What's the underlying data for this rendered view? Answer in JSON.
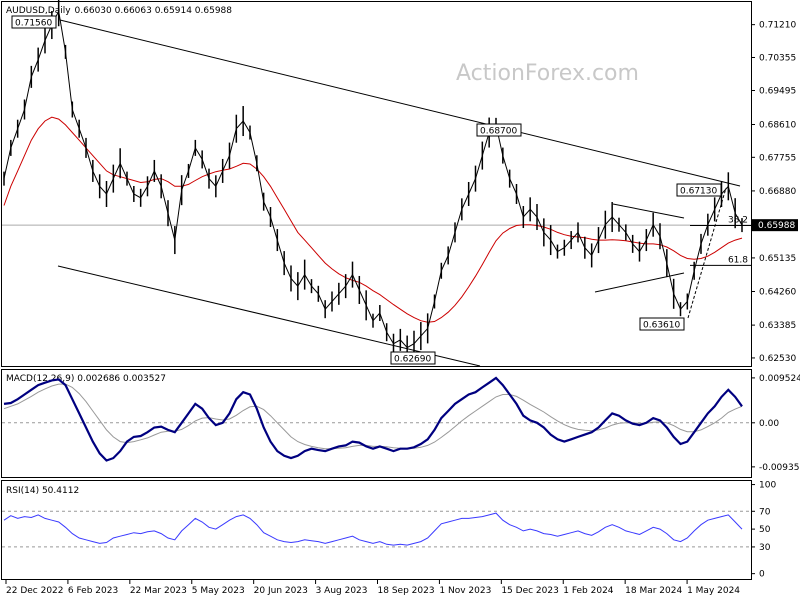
{
  "header": {
    "symbol": "AUDUSD,Daily",
    "ohlc": "0.66030 0.66063 0.65914 0.65988"
  },
  "watermark": "ActionForex.com",
  "colors": {
    "price": "#000000",
    "ma": "#cc0000",
    "macd": "#000080",
    "signal": "#999999",
    "rsi": "#3a3aff",
    "channel": "#000000"
  },
  "chart_data": [
    {
      "type": "line",
      "panel": "price",
      "title": "AUDUSD,Daily",
      "x_ticks": [
        "22 Dec 2022",
        "6 Feb 2023",
        "22 Mar 2023",
        "5 May 2023",
        "20 Jun 2023",
        "3 Aug 2023",
        "18 Sep 2023",
        "1 Nov 2023",
        "15 Dec 2023",
        "1 Feb 2024",
        "18 Mar 2024",
        "1 May 2024"
      ],
      "y_ticks": [
        "0.71210",
        "0.70355",
        "0.69495",
        "0.68610",
        "0.67755",
        "0.66880",
        "0.66025",
        "0.65135",
        "0.64260",
        "0.63385",
        "0.62530"
      ],
      "ylim": [
        0.6232,
        0.718
      ],
      "current_price": "0.65988",
      "fib_labels": [
        "38.2",
        "61.8"
      ],
      "fib_levels": [
        0.6598,
        0.6494
      ],
      "annotations": [
        {
          "label": "0.71560",
          "x": "06 Feb 2023",
          "y": 0.7156
        },
        {
          "label": "0.62690",
          "x": "26 Oct 2023",
          "y": 0.6269
        },
        {
          "label": "0.68700",
          "x": "15 Dec 2023",
          "y": 0.687
        },
        {
          "label": "0.67130",
          "x": "08 May 2024",
          "y": 0.6713
        },
        {
          "label": "0.63610",
          "x": "19 Apr 2024",
          "y": 0.6361
        }
      ],
      "series": [
        {
          "values": [
            0.672,
            0.68,
            0.685,
            0.69,
            0.6985,
            0.703,
            0.708,
            0.712,
            0.7156,
            0.705,
            0.69,
            0.685,
            0.68,
            0.674,
            0.67,
            0.668,
            0.672,
            0.676,
            0.672,
            0.668,
            0.667,
            0.67,
            0.674,
            0.67,
            0.663,
            0.656,
            0.669,
            0.674,
            0.68,
            0.677,
            0.672,
            0.67,
            0.674,
            0.678,
            0.685,
            0.687,
            0.684,
            0.676,
            0.666,
            0.662,
            0.656,
            0.65,
            0.646,
            0.644,
            0.647,
            0.644,
            0.642,
            0.638,
            0.64,
            0.642,
            0.644,
            0.647,
            0.643,
            0.639,
            0.635,
            0.637,
            0.632,
            0.629,
            0.63,
            0.628,
            0.629,
            0.631,
            0.633,
            0.64,
            0.648,
            0.652,
            0.658,
            0.664,
            0.668,
            0.672,
            0.678,
            0.684,
            0.686,
            0.678,
            0.672,
            0.668,
            0.662,
            0.664,
            0.662,
            0.658,
            0.656,
            0.653,
            0.654,
            0.656,
            0.658,
            0.654,
            0.652,
            0.656,
            0.66,
            0.662,
            0.66,
            0.658,
            0.655,
            0.653,
            0.656,
            0.66,
            0.657,
            0.65,
            0.642,
            0.638,
            0.64,
            0.648,
            0.655,
            0.66,
            0.664,
            0.668,
            0.67,
            0.663,
            0.6599
          ]
        },
        {
          "values": [
            0.665,
            0.67,
            0.674,
            0.678,
            0.682,
            0.685,
            0.687,
            0.688,
            0.6875,
            0.686,
            0.684,
            0.682,
            0.68,
            0.678,
            0.676,
            0.674,
            0.673,
            0.6725,
            0.672,
            0.6715,
            0.671,
            0.6712,
            0.6718,
            0.672,
            0.6712,
            0.67,
            0.67,
            0.6705,
            0.6715,
            0.6725,
            0.6732,
            0.6738,
            0.6742,
            0.6745,
            0.6752,
            0.676,
            0.6758,
            0.6745,
            0.6725,
            0.67,
            0.667,
            0.664,
            0.661,
            0.658,
            0.656,
            0.654,
            0.652,
            0.65,
            0.6485,
            0.6472,
            0.6462,
            0.6455,
            0.645,
            0.644,
            0.6428,
            0.6418,
            0.6405,
            0.6392,
            0.638,
            0.6368,
            0.6358,
            0.635,
            0.6346,
            0.6348,
            0.6358,
            0.6372,
            0.639,
            0.6412,
            0.6438,
            0.6466,
            0.6496,
            0.6528,
            0.6558,
            0.6578,
            0.659,
            0.6598,
            0.66,
            0.66,
            0.6598,
            0.6594,
            0.6588,
            0.658,
            0.6574,
            0.657,
            0.6568,
            0.6566,
            0.6562,
            0.656,
            0.656,
            0.6561,
            0.656,
            0.6558,
            0.6555,
            0.6552,
            0.655,
            0.655,
            0.6548,
            0.6542,
            0.6532,
            0.652,
            0.6512,
            0.651,
            0.6512,
            0.6518,
            0.6528,
            0.654,
            0.6552,
            0.656,
            0.6565
          ]
        }
      ]
    },
    {
      "type": "line",
      "panel": "macd",
      "title": "MACD(12,26,9) 0.002686 0.003527",
      "y_ticks": [
        "0.009524",
        "0.00",
        "-0.00935"
      ],
      "ylim": [
        -0.0115,
        0.0112
      ],
      "series": [
        {
          "values": [
            0.004,
            0.0042,
            0.005,
            0.006,
            0.007,
            0.008,
            0.0085,
            0.009,
            0.0092,
            0.008,
            0.005,
            0.002,
            -0.001,
            -0.004,
            -0.0065,
            -0.008,
            -0.0075,
            -0.006,
            -0.004,
            -0.003,
            -0.0028,
            -0.002,
            -0.001,
            -0.0008,
            -0.0015,
            -0.002,
            0.0,
            0.002,
            0.004,
            0.003,
            0.001,
            -0.0005,
            0.0,
            0.002,
            0.005,
            0.0065,
            0.006,
            0.003,
            -0.001,
            -0.004,
            -0.006,
            -0.007,
            -0.0075,
            -0.007,
            -0.006,
            -0.0055,
            -0.0058,
            -0.006,
            -0.0055,
            -0.005,
            -0.0048,
            -0.004,
            -0.0042,
            -0.005,
            -0.0055,
            -0.005,
            -0.0055,
            -0.006,
            -0.0055,
            -0.0055,
            -0.0052,
            -0.0045,
            -0.0035,
            -0.0015,
            0.001,
            0.0025,
            0.004,
            0.005,
            0.006,
            0.0065,
            0.0075,
            0.0085,
            0.0095,
            0.008,
            0.006,
            0.004,
            0.0015,
            0.0005,
            0.0,
            -0.001,
            -0.0025,
            -0.0035,
            -0.004,
            -0.0035,
            -0.003,
            -0.0025,
            -0.002,
            -0.001,
            0.0005,
            0.002,
            0.0015,
            0.0005,
            -0.0002,
            -0.0005,
            0.0,
            0.001,
            0.0005,
            -0.001,
            -0.003,
            -0.0045,
            -0.004,
            -0.002,
            0.0,
            0.002,
            0.0035,
            0.0055,
            0.007,
            0.0055,
            0.0035
          ]
        },
        {
          "values": [
            0.003,
            0.0035,
            0.004,
            0.0048,
            0.0056,
            0.0065,
            0.0072,
            0.0078,
            0.0082,
            0.0082,
            0.0075,
            0.0062,
            0.0045,
            0.0025,
            0.0005,
            -0.0015,
            -0.003,
            -0.004,
            -0.0042,
            -0.004,
            -0.0036,
            -0.0032,
            -0.0026,
            -0.002,
            -0.0018,
            -0.0018,
            -0.0014,
            -0.0006,
            0.0004,
            0.001,
            0.0011,
            0.0008,
            0.0006,
            0.0008,
            0.0016,
            0.0026,
            0.0034,
            0.0035,
            0.0028,
            0.0015,
            0.0,
            -0.0015,
            -0.003,
            -0.004,
            -0.0046,
            -0.005,
            -0.0053,
            -0.0055,
            -0.0055,
            -0.0054,
            -0.0053,
            -0.005,
            -0.0048,
            -0.0048,
            -0.005,
            -0.005,
            -0.0051,
            -0.0053,
            -0.0054,
            -0.0054,
            -0.0054,
            -0.0052,
            -0.0048,
            -0.0041,
            -0.0031,
            -0.002,
            -0.0008,
            0.0004,
            0.0015,
            0.0025,
            0.0035,
            0.0045,
            0.0055,
            0.006,
            0.006,
            0.0056,
            0.0048,
            0.0039,
            0.0031,
            0.0023,
            0.0013,
            0.0004,
            -0.0004,
            -0.001,
            -0.0014,
            -0.0016,
            -0.0017,
            -0.0015,
            -0.0011,
            -0.0005,
            -0.0001,
            0.0,
            0.0,
            -0.0001,
            -0.0001,
            0.0001,
            0.0002,
            0.0,
            -0.0006,
            -0.0014,
            -0.0019,
            -0.0019,
            -0.0015,
            -0.0008,
            0.0,
            0.001,
            0.0022,
            0.0029,
            0.0035
          ]
        }
      ]
    },
    {
      "type": "line",
      "panel": "rsi",
      "title": "RSI(14) 50.4112",
      "y_ticks": [
        "100",
        "70",
        "50",
        "30",
        "0"
      ],
      "ylim": [
        -6,
        104
      ],
      "series": [
        {
          "values": [
            60,
            65,
            62,
            64,
            63,
            66,
            62,
            60,
            58,
            52,
            45,
            40,
            38,
            36,
            34,
            35,
            40,
            42,
            44,
            46,
            45,
            47,
            48,
            45,
            40,
            38,
            48,
            55,
            62,
            58,
            52,
            50,
            55,
            60,
            64,
            66,
            62,
            55,
            46,
            42,
            38,
            36,
            35,
            36,
            38,
            37,
            36,
            34,
            36,
            38,
            40,
            42,
            38,
            36,
            34,
            36,
            33,
            32,
            33,
            32,
            34,
            36,
            40,
            48,
            56,
            58,
            60,
            62,
            62,
            63,
            64,
            66,
            68,
            60,
            55,
            52,
            48,
            50,
            48,
            45,
            44,
            42,
            44,
            46,
            48,
            45,
            43,
            47,
            52,
            55,
            52,
            48,
            46,
            44,
            48,
            52,
            50,
            45,
            38,
            36,
            40,
            48,
            55,
            60,
            62,
            64,
            66,
            58,
            50
          ]
        }
      ]
    }
  ]
}
